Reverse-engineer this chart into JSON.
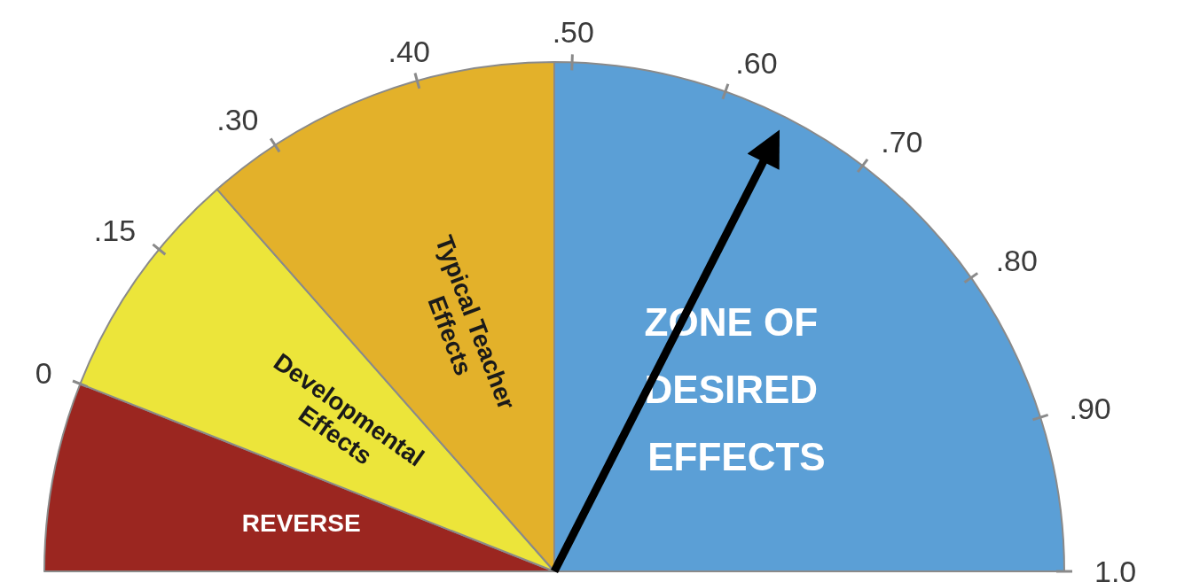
{
  "chart_data": {
    "type": "pie",
    "categories": [
      "REVERSE",
      "Developmental Effects",
      "Typical Teacher Effects",
      "ZONE OF DESIRED EFFECTS"
    ],
    "values": [
      12,
      15,
      23,
      50
    ],
    "colors": [
      "#9b2620",
      "#ece53a",
      "#e3b12a",
      "#5b9fd6"
    ],
    "needle": "ZONE OF DESIRED EFFECTS",
    "annotations": [
      "0",
      ".15",
      ".30",
      ".40",
      ".50",
      ".60",
      ".70",
      ".80",
      ".90",
      "1.0"
    ]
  }
}
